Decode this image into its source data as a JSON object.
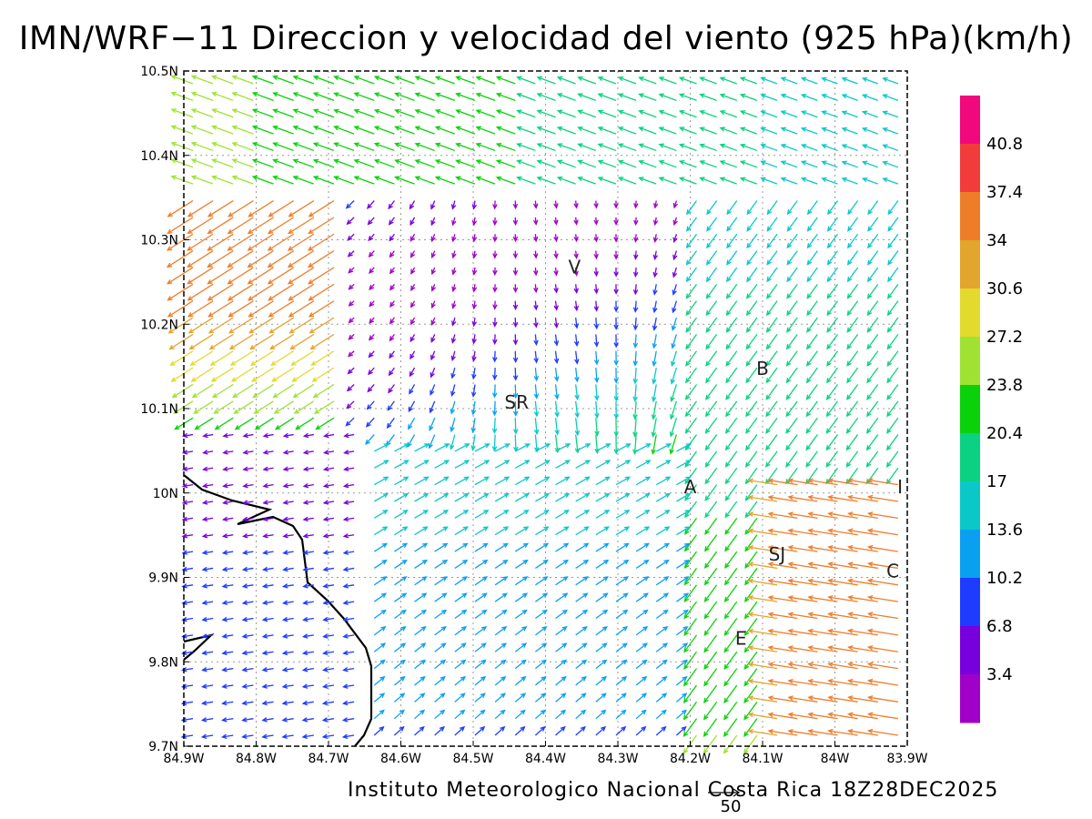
{
  "title": "IMN/WRF−11 Direccion y velocidad del viento (925 hPa)(km/h)",
  "footer": "Instituto Meteorologico Nacional Costa Rica 18Z28DEC2025",
  "reference_vector": {
    "value": "50"
  },
  "map": {
    "lon_range": [
      -84.9,
      -83.9
    ],
    "lat_range": [
      9.7,
      10.5
    ],
    "grid": "dotted",
    "x_ticks": [
      "84.9W",
      "84.8W",
      "84.7W",
      "84.6W",
      "84.5W",
      "84.4W",
      "84.3W",
      "84.2W",
      "84.1W",
      "84W",
      "83.9W"
    ],
    "y_ticks": [
      "9.7N",
      "9.8N",
      "9.9N",
      "10N",
      "10.1N",
      "10.2N",
      "10.3N",
      "10.4N",
      "10.5N"
    ],
    "places": [
      {
        "label": "V",
        "lon": -84.36,
        "lat": 10.26
      },
      {
        "label": "B",
        "lon": -84.1,
        "lat": 10.14
      },
      {
        "label": "SR",
        "lon": -84.44,
        "lat": 10.1
      },
      {
        "label": "A",
        "lon": -84.2,
        "lat": 10.0
      },
      {
        "label": "I",
        "lon": -83.91,
        "lat": 10.0
      },
      {
        "label": "SJ",
        "lon": -84.08,
        "lat": 9.92
      },
      {
        "label": "C",
        "lon": -83.92,
        "lat": 9.9
      },
      {
        "label": "E",
        "lon": -84.13,
        "lat": 9.82
      }
    ]
  },
  "colorbar": {
    "labels": [
      "40.8",
      "37.4",
      "34",
      "30.6",
      "27.2",
      "23.8",
      "20.4",
      "17",
      "13.6",
      "10.2",
      "6.8",
      "3.4"
    ],
    "colors": [
      "#f0087c",
      "#f23c3c",
      "#ee7d2a",
      "#e2a52d",
      "#e2da2d",
      "#a0e232",
      "#0ad20a",
      "#0ad282",
      "#0ac8c8",
      "#0aa0f0",
      "#1e3cff",
      "#7800dc",
      "#a000c8"
    ]
  },
  "icons": [
    "wind-vector-arrow"
  ]
}
